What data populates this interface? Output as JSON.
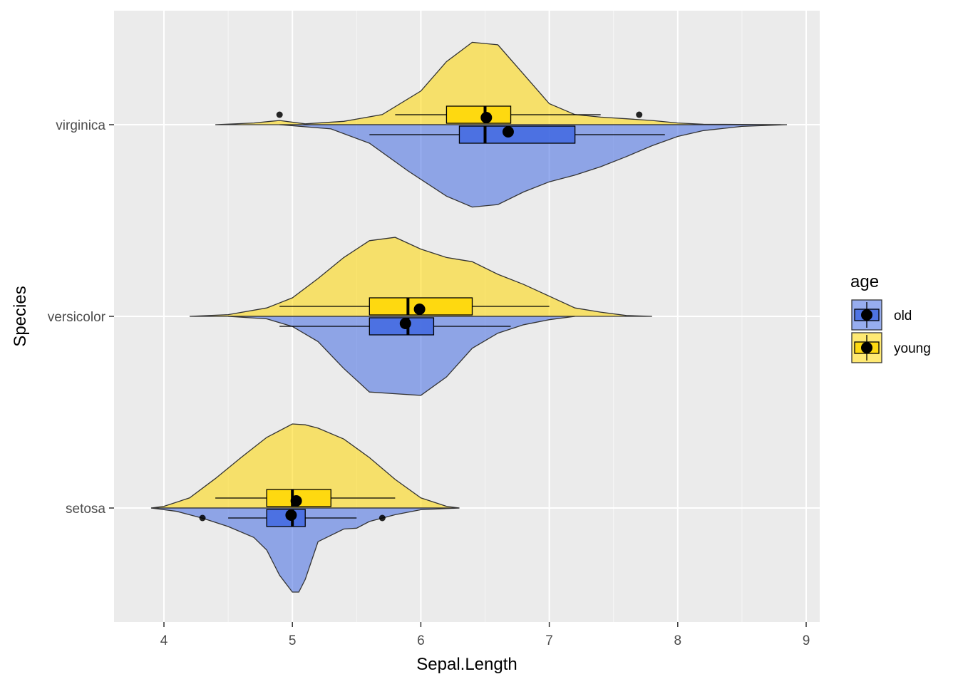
{
  "chart_data": {
    "type": "raincloud (half-violin + boxplot + mean point)",
    "xlabel": "Sepal.Length",
    "ylabel": "Species",
    "xlim": [
      3.6,
      9.1
    ],
    "x_ticks": [
      4,
      5,
      6,
      7,
      8,
      9
    ],
    "categories": [
      "setosa",
      "versicolor",
      "virginica"
    ],
    "grid": true,
    "legend": {
      "title": "age",
      "position": "right",
      "entries": [
        "old",
        "young"
      ]
    },
    "colors": {
      "old_fill": "#4169E1",
      "young_fill": "#FFD700",
      "panel_bg": "#EBEBEB",
      "grid_major": "#FFFFFF",
      "outline": "#333333",
      "mean_point": "#000000"
    },
    "series": [
      {
        "name": "young",
        "side": "up",
        "groups": [
          {
            "category": "setosa",
            "box": {
              "q1": 4.8,
              "median": 5.0,
              "q3": 5.3,
              "wl": 4.4,
              "wh": 5.8
            },
            "mean": 5.03,
            "outliers": [],
            "density_x": [
              3.9,
              4.0,
              4.2,
              4.4,
              4.6,
              4.8,
              5.0,
              5.1,
              5.2,
              5.4,
              5.6,
              5.8,
              6.0,
              6.2,
              6.3
            ],
            "density_h": [
              0.0,
              0.02,
              0.12,
              0.35,
              0.6,
              0.84,
              1.0,
              0.99,
              0.95,
              0.82,
              0.6,
              0.34,
              0.12,
              0.02,
              0.0
            ]
          },
          {
            "category": "versicolor",
            "box": {
              "q1": 5.6,
              "median": 5.9,
              "q3": 6.4,
              "wl": 4.9,
              "wh": 7.0
            },
            "mean": 5.99,
            "outliers": [],
            "density_x": [
              4.2,
              4.5,
              4.8,
              5.0,
              5.2,
              5.4,
              5.6,
              5.8,
              6.0,
              6.2,
              6.4,
              6.6,
              6.8,
              7.0,
              7.2,
              7.4,
              7.6,
              7.8
            ],
            "density_h": [
              0.0,
              0.02,
              0.1,
              0.22,
              0.45,
              0.7,
              0.9,
              0.94,
              0.8,
              0.7,
              0.65,
              0.5,
              0.38,
              0.24,
              0.1,
              0.05,
              0.01,
              0.0
            ]
          },
          {
            "category": "virginica",
            "box": {
              "q1": 6.2,
              "median": 6.5,
              "q3": 6.7,
              "wl": 5.8,
              "wh": 7.4
            },
            "mean": 6.51,
            "outliers": [
              4.9,
              7.7
            ],
            "density_x": [
              4.4,
              4.7,
              4.9,
              5.1,
              5.4,
              5.7,
              6.0,
              6.2,
              6.4,
              6.6,
              6.8,
              7.0,
              7.2,
              7.4,
              7.6,
              7.8,
              8.0,
              8.2,
              8.8
            ],
            "density_h": [
              0.0,
              0.02,
              0.05,
              0.01,
              0.04,
              0.12,
              0.4,
              0.75,
              0.98,
              0.95,
              0.6,
              0.25,
              0.12,
              0.09,
              0.07,
              0.05,
              0.02,
              0.005,
              0.0
            ]
          }
        ]
      },
      {
        "name": "old",
        "side": "down",
        "groups": [
          {
            "category": "setosa",
            "box": {
              "q1": 4.8,
              "median": 5.0,
              "q3": 5.1,
              "wl": 4.5,
              "wh": 5.5
            },
            "mean": 4.99,
            "outliers": [
              4.3,
              5.7
            ],
            "density_x": [
              3.9,
              4.1,
              4.3,
              4.5,
              4.7,
              4.8,
              4.9,
              5.0,
              5.05,
              5.1,
              5.2,
              5.4,
              5.5,
              5.6,
              5.8,
              6.0,
              6.3
            ],
            "density_h": [
              0.0,
              0.04,
              0.12,
              0.22,
              0.35,
              0.5,
              0.8,
              1.0,
              1.0,
              0.85,
              0.4,
              0.25,
              0.24,
              0.16,
              0.08,
              0.02,
              0.0
            ]
          },
          {
            "category": "versicolor",
            "box": {
              "q1": 5.6,
              "median": 5.9,
              "q3": 6.1,
              "wl": 4.9,
              "wh": 6.7
            },
            "mean": 5.88,
            "outliers": [],
            "density_x": [
              4.5,
              4.8,
              5.0,
              5.2,
              5.4,
              5.6,
              5.8,
              6.0,
              6.2,
              6.4,
              6.6,
              6.8,
              7.0,
              7.2
            ],
            "density_h": [
              0.0,
              0.03,
              0.12,
              0.3,
              0.62,
              0.9,
              0.92,
              0.94,
              0.72,
              0.38,
              0.2,
              0.1,
              0.04,
              0.0
            ]
          },
          {
            "category": "virginica",
            "box": {
              "q1": 6.3,
              "median": 6.5,
              "q3": 7.2,
              "wl": 5.6,
              "wh": 7.9
            },
            "mean": 6.68,
            "outliers": [],
            "density_x": [
              4.9,
              5.3,
              5.6,
              5.9,
              6.2,
              6.4,
              6.6,
              6.8,
              7.0,
              7.2,
              7.4,
              7.6,
              7.8,
              8.0,
              8.2,
              8.5,
              8.85
            ],
            "density_h": [
              0.0,
              0.05,
              0.22,
              0.55,
              0.85,
              0.98,
              0.95,
              0.8,
              0.68,
              0.6,
              0.5,
              0.38,
              0.25,
              0.14,
              0.07,
              0.02,
              0.0
            ]
          }
        ]
      }
    ]
  }
}
